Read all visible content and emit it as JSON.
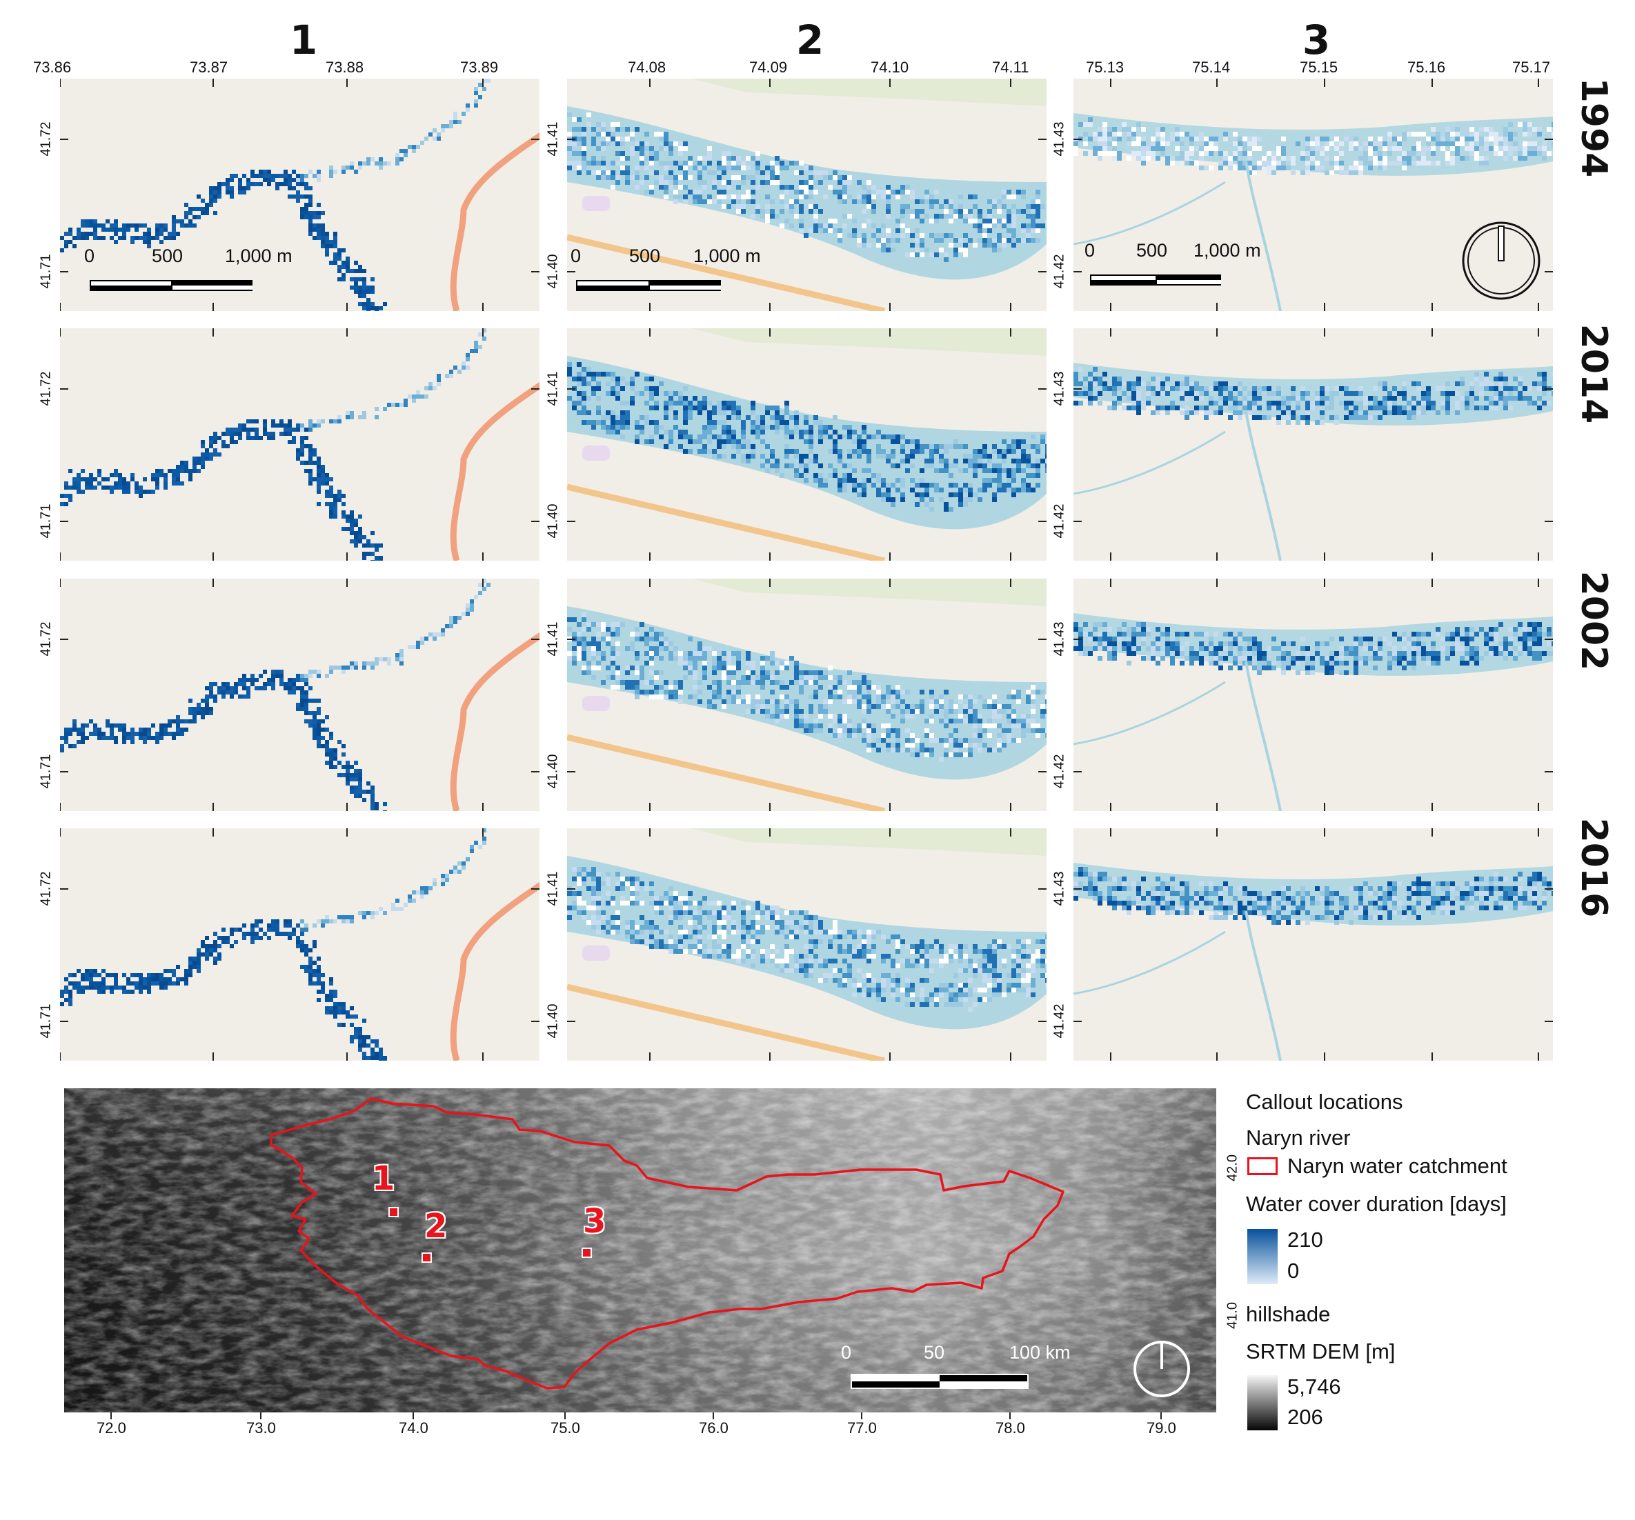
{
  "columns": [
    {
      "title": "1",
      "lon_ticks": [
        "73.86",
        "73.87",
        "73.88",
        "73.89"
      ],
      "lat_ticks": [
        "41.72",
        "41.71"
      ]
    },
    {
      "title": "2",
      "lon_ticks": [
        "74.08",
        "74.09",
        "74.10",
        "74.11"
      ],
      "lat_ticks": [
        "41.41",
        "41.40"
      ]
    },
    {
      "title": "3",
      "lon_ticks": [
        "75.13",
        "75.14",
        "75.15",
        "75.16",
        "75.17"
      ],
      "lat_ticks": [
        "41.43",
        "41.42"
      ]
    }
  ],
  "years": [
    "1994",
    "2014",
    "2002",
    "2016"
  ],
  "panel_scalebar": {
    "labels": [
      "0",
      "500",
      "1,000 m"
    ]
  },
  "overview": {
    "lon_ticks": [
      "72.0",
      "73.0",
      "74.0",
      "75.0",
      "76.0",
      "77.0",
      "78.0",
      "79.0"
    ],
    "lat_ticks": [
      "42.0",
      "41.0"
    ],
    "callouts": [
      "1",
      "2",
      "3"
    ],
    "scalebar": {
      "labels": [
        "0",
        "50",
        "100 km"
      ]
    }
  },
  "legend": {
    "callout_locations": "Callout locations",
    "naryn_river": "Naryn river",
    "catchment": "Naryn water catchment",
    "water_title": "Water cover duration [days]",
    "water_max": "210",
    "water_min": "0",
    "hillshade": "hillshade",
    "dem_title": "SRTM DEM [m]",
    "dem_max": "5,746",
    "dem_min": "206"
  },
  "colors": {
    "water_dark": "#08519c",
    "water_light": "#deebf7",
    "floodplain": "#a8d4e0",
    "road": "#f1a17e",
    "highway": "#f2c58b",
    "background": "#f1eee8",
    "catchment": "#e8131c"
  }
}
